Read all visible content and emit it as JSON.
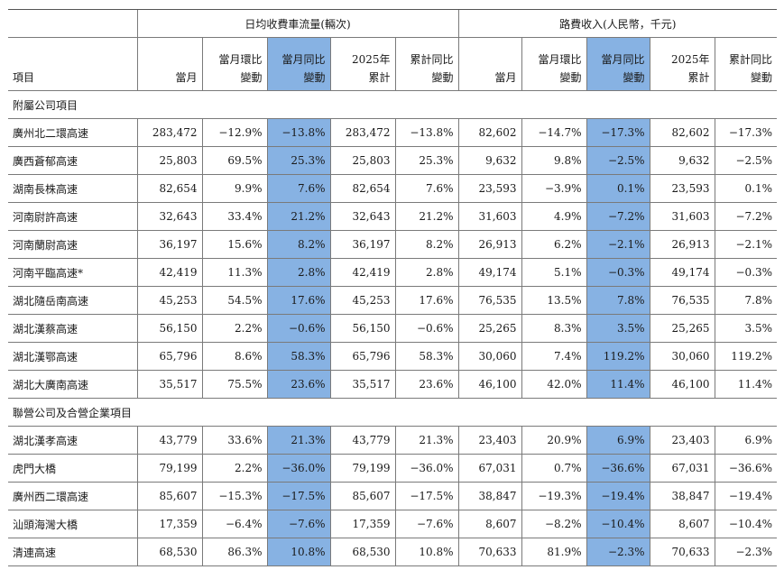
{
  "header": {
    "item_label": "項目",
    "group_traffic": "日均收費車流量(輛次)",
    "group_revenue": "路費收入(人民幣，千元)",
    "col_month": "當月",
    "col_mom_1": "當月環比",
    "col_mom_2": "變動",
    "col_yoy_1": "當月同比",
    "col_yoy_2": "變動",
    "col_ytd_1": "2025年",
    "col_ytd_2": "累計",
    "col_cum_1": "累計同比",
    "col_cum_2": "變動"
  },
  "highlight_color": "#87b2e3",
  "sections": [
    {
      "title": "附屬公司項目",
      "rows": [
        {
          "name": "廣州北二環高速",
          "t_month": "283,472",
          "t_mom": "−12.9%",
          "t_yoy": "−13.8%",
          "t_ytd": "283,472",
          "t_cum": "−13.8%",
          "r_month": "82,602",
          "r_mom": "−14.7%",
          "r_yoy": "−17.3%",
          "r_ytd": "82,602",
          "r_cum": "−17.3%"
        },
        {
          "name": "廣西蒼郁高速",
          "t_month": "25,803",
          "t_mom": "69.5%",
          "t_yoy": "25.3%",
          "t_ytd": "25,803",
          "t_cum": "25.3%",
          "r_month": "9,632",
          "r_mom": "9.8%",
          "r_yoy": "−2.5%",
          "r_ytd": "9,632",
          "r_cum": "−2.5%"
        },
        {
          "name": "湖南長株高速",
          "t_month": "82,654",
          "t_mom": "9.9%",
          "t_yoy": "7.6%",
          "t_ytd": "82,654",
          "t_cum": "7.6%",
          "r_month": "23,593",
          "r_mom": "−3.9%",
          "r_yoy": "0.1%",
          "r_ytd": "23,593",
          "r_cum": "0.1%"
        },
        {
          "name": "河南尉許高速",
          "t_month": "32,643",
          "t_mom": "33.4%",
          "t_yoy": "21.2%",
          "t_ytd": "32,643",
          "t_cum": "21.2%",
          "r_month": "31,603",
          "r_mom": "4.9%",
          "r_yoy": "−7.2%",
          "r_ytd": "31,603",
          "r_cum": "−7.2%"
        },
        {
          "name": "河南蘭尉高速",
          "t_month": "36,197",
          "t_mom": "15.6%",
          "t_yoy": "8.2%",
          "t_ytd": "36,197",
          "t_cum": "8.2%",
          "r_month": "26,913",
          "r_mom": "6.2%",
          "r_yoy": "−2.1%",
          "r_ytd": "26,913",
          "r_cum": "−2.1%"
        },
        {
          "name": "河南平臨高速*",
          "t_month": "42,419",
          "t_mom": "11.3%",
          "t_yoy": "2.8%",
          "t_ytd": "42,419",
          "t_cum": "2.8%",
          "r_month": "49,174",
          "r_mom": "5.1%",
          "r_yoy": "−0.3%",
          "r_ytd": "49,174",
          "r_cum": "−0.3%"
        },
        {
          "name": "湖北隨岳南高速",
          "t_month": "45,253",
          "t_mom": "54.5%",
          "t_yoy": "17.6%",
          "t_ytd": "45,253",
          "t_cum": "17.6%",
          "r_month": "76,535",
          "r_mom": "13.5%",
          "r_yoy": "7.8%",
          "r_ytd": "76,535",
          "r_cum": "7.8%"
        },
        {
          "name": "湖北漢蔡高速",
          "t_month": "56,150",
          "t_mom": "2.2%",
          "t_yoy": "−0.6%",
          "t_ytd": "56,150",
          "t_cum": "−0.6%",
          "r_month": "25,265",
          "r_mom": "8.3%",
          "r_yoy": "3.5%",
          "r_ytd": "25,265",
          "r_cum": "3.5%"
        },
        {
          "name": "湖北漢鄂高速",
          "t_month": "65,796",
          "t_mom": "8.6%",
          "t_yoy": "58.3%",
          "t_ytd": "65,796",
          "t_cum": "58.3%",
          "r_month": "30,060",
          "r_mom": "7.4%",
          "r_yoy": "119.2%",
          "r_ytd": "30,060",
          "r_cum": "119.2%"
        },
        {
          "name": "湖北大廣南高速",
          "t_month": "35,517",
          "t_mom": "75.5%",
          "t_yoy": "23.6%",
          "t_ytd": "35,517",
          "t_cum": "23.6%",
          "r_month": "46,100",
          "r_mom": "42.0%",
          "r_yoy": "11.4%",
          "r_ytd": "46,100",
          "r_cum": "11.4%"
        }
      ]
    },
    {
      "title": "聯營公司及合營企業項目",
      "rows": [
        {
          "name": "湖北漢孝高速",
          "t_month": "43,779",
          "t_mom": "33.6%",
          "t_yoy": "21.3%",
          "t_ytd": "43,779",
          "t_cum": "21.3%",
          "r_month": "23,403",
          "r_mom": "20.9%",
          "r_yoy": "6.9%",
          "r_ytd": "23,403",
          "r_cum": "6.9%"
        },
        {
          "name": "虎門大橋",
          "t_month": "79,199",
          "t_mom": "2.2%",
          "t_yoy": "−36.0%",
          "t_ytd": "79,199",
          "t_cum": "−36.0%",
          "r_month": "67,031",
          "r_mom": "0.7%",
          "r_yoy": "−36.6%",
          "r_ytd": "67,031",
          "r_cum": "−36.6%"
        },
        {
          "name": "廣州西二環高速",
          "t_month": "85,607",
          "t_mom": "−15.3%",
          "t_yoy": "−17.5%",
          "t_ytd": "85,607",
          "t_cum": "−17.5%",
          "r_month": "38,847",
          "r_mom": "−19.3%",
          "r_yoy": "−19.4%",
          "r_ytd": "38,847",
          "r_cum": "−19.4%"
        },
        {
          "name": "汕頭海灣大橋",
          "t_month": "17,359",
          "t_mom": "−6.4%",
          "t_yoy": "−7.6%",
          "t_ytd": "17,359",
          "t_cum": "−7.6%",
          "r_month": "8,607",
          "r_mom": "−8.2%",
          "r_yoy": "−10.4%",
          "r_ytd": "8,607",
          "r_cum": "−10.4%"
        },
        {
          "name": "清連高速",
          "t_month": "68,530",
          "t_mom": "86.3%",
          "t_yoy": "10.8%",
          "t_ytd": "68,530",
          "t_cum": "10.8%",
          "r_month": "70,633",
          "r_mom": "81.9%",
          "r_yoy": "−2.3%",
          "r_ytd": "70,633",
          "r_cum": "−2.3%"
        }
      ]
    }
  ]
}
